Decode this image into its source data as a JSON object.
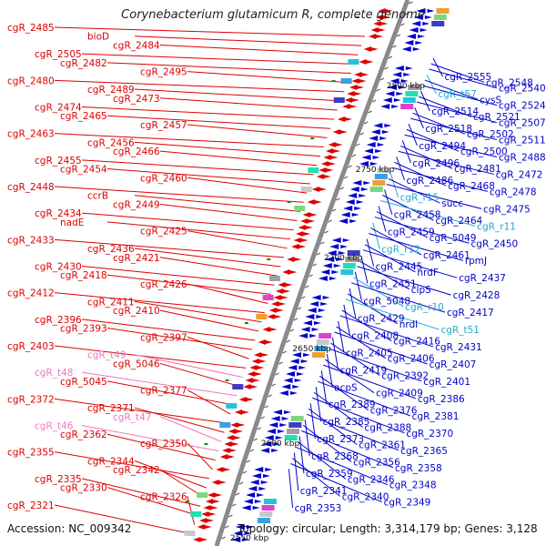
{
  "title": "Corynebacterium glutamicum R, complete genome",
  "footer": {
    "accession": "Accession: NC_009342",
    "summary": "Topology: circular; Length: 3,314,179 bp; Genes: 3,128"
  },
  "colors": {
    "left_gene": "#dd0000",
    "right_gene": "#0000cc",
    "left_rna": "#ee77bb",
    "right_rna": "#22aacc",
    "backbone": "#8a8a8a",
    "feature_green": "#118811"
  },
  "scale_labels": [
    "2800 kbp",
    "2750 kbp",
    "2700 kbp",
    "2650 kbp",
    "2600 kbp",
    "2550 kbp"
  ],
  "left_labels": [
    {
      "text": "cgR_2485",
      "kind": "gene"
    },
    {
      "text": "bioD",
      "kind": "gene"
    },
    {
      "text": "cgR_2484",
      "kind": "gene"
    },
    {
      "text": "cgR_2505",
      "kind": "gene"
    },
    {
      "text": "cgR_2482",
      "kind": "gene"
    },
    {
      "text": "cgR_2495",
      "kind": "gene"
    },
    {
      "text": "cgR_2480",
      "kind": "gene"
    },
    {
      "text": "cgR_2489",
      "kind": "gene"
    },
    {
      "text": "cgR_2473",
      "kind": "gene"
    },
    {
      "text": "cgR_2474",
      "kind": "gene"
    },
    {
      "text": "cgR_2465",
      "kind": "gene"
    },
    {
      "text": "cgR_2457",
      "kind": "gene"
    },
    {
      "text": "cgR_2463",
      "kind": "gene"
    },
    {
      "text": "cgR_2456",
      "kind": "gene"
    },
    {
      "text": "cgR_2466",
      "kind": "gene"
    },
    {
      "text": "cgR_2455",
      "kind": "gene"
    },
    {
      "text": "cgR_2454",
      "kind": "gene"
    },
    {
      "text": "cgR_2460",
      "kind": "gene"
    },
    {
      "text": "cgR_2448",
      "kind": "gene"
    },
    {
      "text": "ccrB",
      "kind": "gene"
    },
    {
      "text": "cgR_2449",
      "kind": "gene"
    },
    {
      "text": "cgR_2434",
      "kind": "gene"
    },
    {
      "text": "nadE",
      "kind": "gene"
    },
    {
      "text": "cgR_2425",
      "kind": "gene"
    },
    {
      "text": "cgR_2433",
      "kind": "gene"
    },
    {
      "text": "cgR_2436",
      "kind": "gene"
    },
    {
      "text": "cgR_2421",
      "kind": "gene"
    },
    {
      "text": "cgR_2430",
      "kind": "gene"
    },
    {
      "text": "cgR_2418",
      "kind": "gene"
    },
    {
      "text": "cgR_2426",
      "kind": "gene"
    },
    {
      "text": "cgR_2412",
      "kind": "gene"
    },
    {
      "text": "cgR_2411",
      "kind": "gene"
    },
    {
      "text": "cgR_2410",
      "kind": "gene"
    },
    {
      "text": "cgR_2396",
      "kind": "gene"
    },
    {
      "text": "cgR_2393",
      "kind": "gene"
    },
    {
      "text": "cgR_2397",
      "kind": "gene"
    },
    {
      "text": "cgR_2403",
      "kind": "gene"
    },
    {
      "text": "cgR_t49",
      "kind": "rna"
    },
    {
      "text": "cgR_5046",
      "kind": "gene"
    },
    {
      "text": "cgR_t48",
      "kind": "rna"
    },
    {
      "text": "cgR_5045",
      "kind": "gene"
    },
    {
      "text": "cgR_2377",
      "kind": "gene"
    },
    {
      "text": "cgR_2372",
      "kind": "gene"
    },
    {
      "text": "cgR_2371",
      "kind": "gene"
    },
    {
      "text": "cgR_t47",
      "kind": "rna"
    },
    {
      "text": "cgR_t46",
      "kind": "rna"
    },
    {
      "text": "cgR_2362",
      "kind": "gene"
    },
    {
      "text": "cgR_2350",
      "kind": "gene"
    },
    {
      "text": "cgR_2355",
      "kind": "gene"
    },
    {
      "text": "cgR_2344",
      "kind": "gene"
    },
    {
      "text": "cgR_2342",
      "kind": "gene"
    },
    {
      "text": "cgR_2335",
      "kind": "gene"
    },
    {
      "text": "cgR_2330",
      "kind": "gene"
    },
    {
      "text": "cgR_2326",
      "kind": "gene"
    },
    {
      "text": "cgR_2321",
      "kind": "gene"
    }
  ],
  "right_labels": [
    {
      "text": "cgR_2555",
      "kind": "gene"
    },
    {
      "text": "cgR_2548",
      "kind": "gene"
    },
    {
      "text": "cgR_2540",
      "kind": "gene"
    },
    {
      "text": "cgR_t57",
      "kind": "rna"
    },
    {
      "text": "cysS",
      "kind": "gene"
    },
    {
      "text": "cgR_2524",
      "kind": "gene"
    },
    {
      "text": "cgR_2514",
      "kind": "gene"
    },
    {
      "text": "cgR_2521",
      "kind": "gene"
    },
    {
      "text": "cgR_2507",
      "kind": "gene"
    },
    {
      "text": "cgR_2518",
      "kind": "gene"
    },
    {
      "text": "cgR_2502",
      "kind": "gene"
    },
    {
      "text": "cgR_2511",
      "kind": "gene"
    },
    {
      "text": "cgR_2494",
      "kind": "gene"
    },
    {
      "text": "cgR_2500",
      "kind": "gene"
    },
    {
      "text": "cgR_2488",
      "kind": "gene"
    },
    {
      "text": "cgR_2496",
      "kind": "gene"
    },
    {
      "text": "cgR_2481",
      "kind": "gene"
    },
    {
      "text": "cgR_2472",
      "kind": "gene"
    },
    {
      "text": "cgR_2486",
      "kind": "gene"
    },
    {
      "text": "cgR_2468",
      "kind": "gene"
    },
    {
      "text": "cgR_2478",
      "kind": "gene"
    },
    {
      "text": "cgR_r15",
      "kind": "rna"
    },
    {
      "text": "succ",
      "kind": "gene"
    },
    {
      "text": "cgR_2475",
      "kind": "gene"
    },
    {
      "text": "cgR_2458",
      "kind": "gene"
    },
    {
      "text": "cgR_2464",
      "kind": "gene"
    },
    {
      "text": "cgR_r11",
      "kind": "rna"
    },
    {
      "text": "cgR_2459",
      "kind": "gene"
    },
    {
      "text": "cgR_5049",
      "kind": "gene"
    },
    {
      "text": "cgR_2450",
      "kind": "gene"
    },
    {
      "text": "cgR_r12",
      "kind": "rna"
    },
    {
      "text": "cgR_2461",
      "kind": "gene"
    },
    {
      "text": "rpmJ",
      "kind": "gene"
    },
    {
      "text": "cgR_2445",
      "kind": "gene"
    },
    {
      "text": "nrdF",
      "kind": "gene"
    },
    {
      "text": "cgR_2437",
      "kind": "gene"
    },
    {
      "text": "cgR_2451",
      "kind": "gene"
    },
    {
      "text": "clpS",
      "kind": "gene"
    },
    {
      "text": "cgR_2428",
      "kind": "gene"
    },
    {
      "text": "cgR_5048",
      "kind": "gene"
    },
    {
      "text": "cgR_r10",
      "kind": "rna"
    },
    {
      "text": "cgR_2417",
      "kind": "gene"
    },
    {
      "text": "cgR_2429",
      "kind": "gene"
    },
    {
      "text": "nrdI",
      "kind": "gene"
    },
    {
      "text": "cgR_t51",
      "kind": "rna"
    },
    {
      "text": "cgR_2408",
      "kind": "gene"
    },
    {
      "text": "cgR_2416",
      "kind": "gene"
    },
    {
      "text": "cgR_2431",
      "kind": "gene"
    },
    {
      "text": "cgR_2405",
      "kind": "gene"
    },
    {
      "text": "cgR_2406",
      "kind": "gene"
    },
    {
      "text": "cgR_2407",
      "kind": "gene"
    },
    {
      "text": "cgR_2419",
      "kind": "gene"
    },
    {
      "text": "cgR_2392",
      "kind": "gene"
    },
    {
      "text": "cgR_2401",
      "kind": "gene"
    },
    {
      "text": "acpS",
      "kind": "gene"
    },
    {
      "text": "cgR_2409",
      "kind": "gene"
    },
    {
      "text": "cgR_2386",
      "kind": "gene"
    },
    {
      "text": "cgR_2389",
      "kind": "gene"
    },
    {
      "text": "cgR_2376",
      "kind": "gene"
    },
    {
      "text": "cgR_2381",
      "kind": "gene"
    },
    {
      "text": "cgR_2385",
      "kind": "gene"
    },
    {
      "text": "cgR_2388",
      "kind": "gene"
    },
    {
      "text": "cgR_2370",
      "kind": "gene"
    },
    {
      "text": "cgR_2373",
      "kind": "gene"
    },
    {
      "text": "cgR_2361",
      "kind": "gene"
    },
    {
      "text": "cgR_2365",
      "kind": "gene"
    },
    {
      "text": "cgR_2368",
      "kind": "gene"
    },
    {
      "text": "cgR_2356",
      "kind": "gene"
    },
    {
      "text": "cgR_2358",
      "kind": "gene"
    },
    {
      "text": "cgR_2359",
      "kind": "gene"
    },
    {
      "text": "cgR_2346",
      "kind": "gene"
    },
    {
      "text": "cgR_2348",
      "kind": "gene"
    },
    {
      "text": "cgR_2341",
      "kind": "gene"
    },
    {
      "text": "cgR_2340",
      "kind": "gene"
    },
    {
      "text": "cgR_2349",
      "kind": "gene"
    },
    {
      "text": "cgR_2353",
      "kind": "gene"
    }
  ]
}
